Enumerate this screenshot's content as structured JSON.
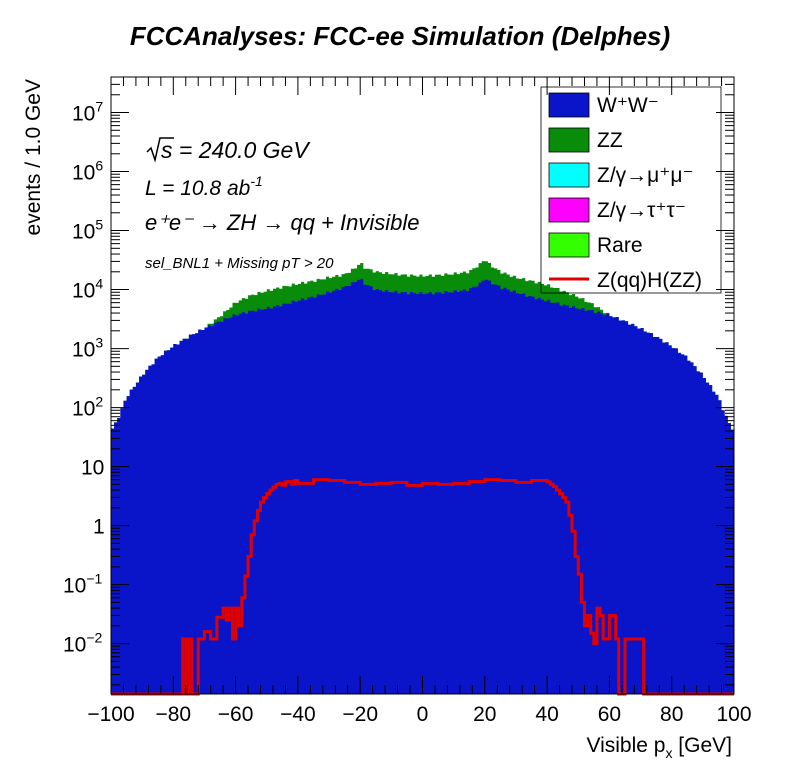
{
  "chart_data": {
    "type": "histogram",
    "title": "FCCAnalyses: FCC-ee Simulation (Delphes)",
    "xlabel": "Visible p",
    "xlabel_sub": "x",
    "xlabel_unit": " [GeV]",
    "ylabel": "events / 1.0 GeV",
    "xlim": [
      -100,
      100
    ],
    "ylim": [
      0.0014,
      40000000
    ],
    "y_scale": "log",
    "x_ticks": [
      "−100",
      "−80",
      "−60",
      "−40",
      "−20",
      "0",
      "20",
      "40",
      "60",
      "80",
      "100"
    ],
    "y_ticks": [
      {
        "value": 0.01,
        "base": "10",
        "exp": "−2"
      },
      {
        "value": 0.1,
        "base": "10",
        "exp": "−1"
      },
      {
        "value": 1,
        "base": "1",
        "exp": ""
      },
      {
        "value": 10,
        "base": "10",
        "exp": ""
      },
      {
        "value": 100,
        "base": "10",
        "exp": "2"
      },
      {
        "value": 1000,
        "base": "10",
        "exp": "3"
      },
      {
        "value": 10000,
        "base": "10",
        "exp": "4"
      },
      {
        "value": 100000,
        "base": "10",
        "exp": "5"
      },
      {
        "value": 1000000,
        "base": "10",
        "exp": "6"
      },
      {
        "value": 10000000,
        "base": "10",
        "exp": "7"
      }
    ],
    "annotations": {
      "sqrt_s": "s = 240.0 GeV",
      "lumi": "L = 10.8 ab",
      "lumi_exp": "-1",
      "process": "e⁺e⁻ → ZH → qq + Invisible",
      "selection": "sel_BNL1 + Missing pT > 20"
    },
    "legend_position": "top-right",
    "stacked_cumulative": [
      {
        "name": "W⁺W⁻",
        "color": "#0a14c8",
        "x": [
          -100,
          -98,
          -95,
          -90,
          -85,
          -80,
          -75,
          -70,
          -65,
          -60,
          -55,
          -50,
          -45,
          -40,
          -35,
          -30,
          -25,
          -21,
          -20,
          -19,
          -15,
          -10,
          -5,
          0,
          5,
          10,
          15,
          19,
          20,
          21,
          25,
          30,
          35,
          40,
          45,
          50,
          55,
          60,
          65,
          70,
          75,
          80,
          85,
          90,
          95,
          98,
          100
        ],
        "y": [
          40,
          60,
          150,
          350,
          700,
          1100,
          1600,
          2200,
          2900,
          3700,
          4300,
          4800,
          5500,
          6500,
          7500,
          9000,
          11000,
          14000,
          16000,
          13000,
          10000,
          9200,
          8800,
          8600,
          8800,
          9200,
          10000,
          13000,
          16000,
          14000,
          11000,
          9000,
          7500,
          6500,
          5500,
          4800,
          4300,
          3700,
          2900,
          2200,
          1600,
          1100,
          700,
          350,
          150,
          60,
          40
        ]
      },
      {
        "name": "ZZ",
        "color": "#098c0a",
        "x": [
          -100,
          -98,
          -95,
          -90,
          -85,
          -80,
          -75,
          -70,
          -65,
          -60,
          -55,
          -50,
          -45,
          -40,
          -35,
          -30,
          -25,
          -21,
          -20,
          -19,
          -15,
          -10,
          -5,
          0,
          5,
          10,
          15,
          19,
          20,
          21,
          25,
          30,
          35,
          40,
          45,
          50,
          55,
          60,
          65,
          70,
          75,
          80,
          85,
          90,
          95,
          98,
          100
        ],
        "y": [
          40,
          60,
          150,
          350,
          700,
          1100,
          1600,
          2200,
          3500,
          6000,
          8000,
          9500,
          11000,
          12500,
          14000,
          16000,
          18000,
          24000,
          30000,
          24000,
          20000,
          18500,
          17500,
          17000,
          17500,
          18500,
          20000,
          28000,
          34000,
          28000,
          20000,
          16000,
          14000,
          12000,
          9500,
          7500,
          5500,
          3700,
          2900,
          2200,
          1600,
          1100,
          700,
          350,
          150,
          60,
          40
        ]
      },
      {
        "name": "Z/γ→μ⁺μ⁻",
        "color": "#00ffff",
        "x": [],
        "y": []
      },
      {
        "name": "Z/γ→τ⁺τ⁻",
        "color": "#ff00ff",
        "x": [
          -100,
          -98,
          -95,
          -90,
          -85,
          -80,
          -75,
          -70,
          -65,
          -60,
          -55,
          -50,
          -45,
          -40,
          -35,
          -30,
          -25,
          -21,
          -20,
          -19,
          -15,
          -10,
          -5,
          0,
          5,
          10,
          15,
          19,
          20,
          21,
          25,
          30,
          35,
          40,
          45,
          50,
          55,
          60,
          65,
          70,
          75,
          80,
          85,
          90,
          95,
          98,
          100
        ],
        "y": [
          12,
          20,
          40,
          90,
          180,
          300,
          420,
          550,
          700,
          900,
          1100,
          1350,
          1600,
          2000,
          2500,
          3200,
          4000,
          5000,
          6000,
          4500,
          3600,
          3300,
          3100,
          3000,
          3100,
          3300,
          3600,
          4500,
          6000,
          5000,
          4000,
          3200,
          2500,
          2000,
          1600,
          1350,
          1100,
          900,
          700,
          550,
          420,
          300,
          180,
          90,
          40,
          20,
          12
        ]
      },
      {
        "name": "Rare",
        "color": "#33ff00",
        "x": [
          -100,
          -98,
          -95,
          -90,
          -85,
          -80,
          -75,
          -70,
          -65,
          -60,
          -55,
          -50,
          -45,
          -40,
          -35,
          -30,
          -25,
          -21,
          -20,
          -19,
          -15,
          -10,
          -5,
          0,
          5,
          10,
          15,
          19,
          20,
          21,
          25,
          30,
          35,
          40,
          45,
          50,
          55,
          60,
          65,
          70,
          75,
          80,
          85,
          90,
          95,
          98,
          100
        ],
        "y": [
          1,
          3,
          6,
          12,
          20,
          35,
          55,
          80,
          110,
          160,
          220,
          280,
          360,
          460,
          580,
          700,
          820,
          900,
          950,
          900,
          850,
          800,
          780,
          760,
          780,
          800,
          850,
          900,
          950,
          900,
          820,
          700,
          580,
          460,
          360,
          280,
          220,
          160,
          110,
          80,
          55,
          35,
          20,
          12,
          6,
          3,
          1
        ]
      }
    ],
    "signal": {
      "name": "Z(qq)H(ZZ)",
      "color": "#e00000",
      "x": [
        -100,
        -78,
        -77,
        -76,
        -75,
        -74,
        -73,
        -72,
        -71,
        -70,
        -69,
        -68,
        -67,
        -66,
        -65,
        -64,
        -63,
        -62,
        -61,
        -60,
        -59,
        -58,
        -57,
        -56,
        -55,
        -54,
        -53,
        -52,
        -51,
        -50,
        -49,
        -48,
        -47,
        -46,
        -45,
        -44,
        -43,
        -42,
        -41,
        -40,
        -35,
        -30,
        -25,
        -20,
        -15,
        -10,
        -5,
        0,
        5,
        10,
        15,
        20,
        25,
        30,
        35,
        40,
        41,
        42,
        43,
        44,
        45,
        46,
        47,
        48,
        49,
        50,
        51,
        52,
        53,
        54,
        55,
        56,
        57,
        58,
        59,
        60,
        61,
        62,
        63,
        64,
        65,
        66,
        67,
        68,
        69,
        70,
        71,
        72,
        73,
        74,
        75,
        76,
        77,
        78,
        100
      ],
      "y": [
        0.0014,
        0.0014,
        0.012,
        0.0014,
        0.012,
        0.0014,
        0.0014,
        0.012,
        0.012,
        0.016,
        0.016,
        0.012,
        0.012,
        0.028,
        0.028,
        0.04,
        0.025,
        0.04,
        0.012,
        0.04,
        0.02,
        0.06,
        0.14,
        0.3,
        0.7,
        1.2,
        1.8,
        2.5,
        3,
        3.5,
        4,
        4.5,
        5,
        5.2,
        4.8,
        5.5,
        5.6,
        5,
        5.8,
        5.2,
        6,
        5.8,
        5.4,
        5.0,
        5.2,
        5.4,
        4.8,
        5.2,
        5.0,
        5.2,
        5.6,
        6.0,
        5.8,
        5.4,
        5.8,
        5.5,
        5.0,
        4.6,
        4.0,
        3.5,
        3.0,
        2.5,
        1.5,
        0.8,
        0.3,
        0.15,
        0.05,
        0.02,
        0.03,
        0.015,
        0.01,
        0.04,
        0.03,
        0.012,
        0.012,
        0.03,
        0.03,
        0.012,
        0.0014,
        0.0014,
        0.012,
        0.012,
        0.012,
        0.012,
        0.012,
        0.012,
        0.0014,
        0.0014,
        0.0014,
        0.0014,
        0.0014,
        0.0014,
        0.0014,
        0.0014,
        0.0014
      ]
    }
  }
}
